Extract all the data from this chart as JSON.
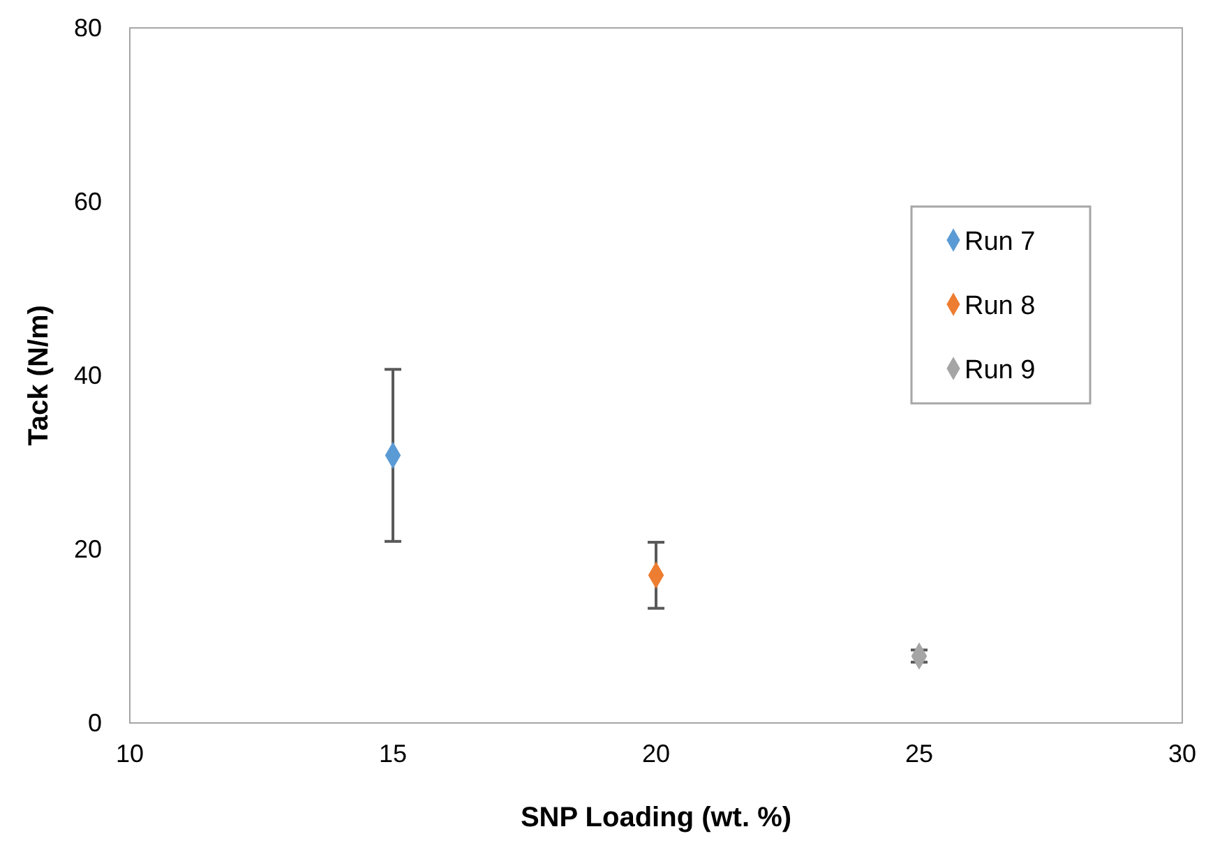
{
  "chart_data": {
    "type": "scatter",
    "xlabel": "SNP Loading (wt. %)",
    "ylabel": "Tack (N/m)",
    "xlim": [
      10,
      30
    ],
    "xticks": [
      10,
      15,
      20,
      25,
      30
    ],
    "ylim": [
      0,
      80
    ],
    "yticks": [
      0,
      20,
      40,
      60,
      80
    ],
    "grid": false,
    "legend": "right",
    "marker": "diamond",
    "series": [
      {
        "name": "Run 7",
        "color": "#5b9bd5",
        "x": [
          15
        ],
        "values": [
          30.8
        ],
        "errors": [
          9.9
        ]
      },
      {
        "name": "Run 8",
        "color": "#ed7d31",
        "x": [
          20
        ],
        "values": [
          17.0
        ],
        "errors": [
          3.8
        ]
      },
      {
        "name": "Run 9",
        "color": "#a5a5a5",
        "x": [
          25
        ],
        "values": [
          7.7
        ],
        "errors": [
          0.7
        ]
      }
    ]
  }
}
